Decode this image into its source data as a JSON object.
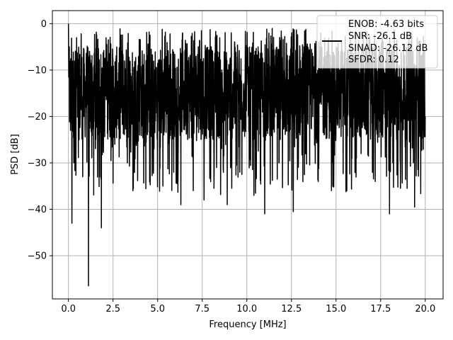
{
  "chart_data": {
    "type": "line",
    "title": "",
    "xlabel": "Frequency [MHz]",
    "ylabel": "PSD [dB]",
    "xlim": [
      -0.9,
      21.0
    ],
    "ylim": [
      -59.3,
      2.8
    ],
    "x_ticks": [
      0.0,
      2.5,
      5.0,
      7.5,
      10.0,
      12.5,
      15.0,
      17.5,
      20.0
    ],
    "x_tick_labels": [
      "0.0",
      "2.5",
      "5.0",
      "7.5",
      "10.0",
      "12.5",
      "15.0",
      "17.5",
      "20.0"
    ],
    "y_ticks": [
      0,
      -10,
      -20,
      -30,
      -40,
      -50
    ],
    "y_tick_labels": [
      "0",
      "−10",
      "−20",
      "−30",
      "−40",
      "−50"
    ],
    "grid": true,
    "legend": {
      "placement": "top-right",
      "entries": [
        {
          "text": "ENOB: -4.63 bits",
          "marker": "none"
        },
        {
          "text": "SNR: -26.1 dB",
          "marker": "line"
        },
        {
          "text": "SINAD: -26.12 dB",
          "marker": "none"
        },
        {
          "text": "SFDR: 0.12",
          "marker": "none"
        }
      ]
    },
    "series": [
      {
        "color": "#000000",
        "x_range": [
          0.0,
          20.0
        ],
        "n_points": 2048,
        "typical_band_db": [
          -25,
          -5
        ],
        "x": [
          0.0,
          0.05,
          0.12,
          0.2,
          0.3,
          0.45,
          0.6,
          0.8,
          1.0,
          1.12,
          1.3,
          1.55,
          1.75,
          1.85,
          2.0,
          2.3,
          2.6,
          3.0,
          3.3,
          3.6,
          4.0,
          4.4,
          4.8,
          5.2,
          5.3,
          5.6,
          5.9,
          6.2,
          6.3,
          6.7,
          7.0,
          7.4,
          7.6,
          8.0,
          8.3,
          8.6,
          8.9,
          9.2,
          9.6,
          10.0,
          10.4,
          10.7,
          11.0,
          11.4,
          11.8,
          12.2,
          12.6,
          13.0,
          13.3,
          13.6,
          14.0,
          14.4,
          14.8,
          15.2,
          15.6,
          16.0,
          16.4,
          16.8,
          17.2,
          17.6,
          18.0,
          18.3,
          18.6,
          19.0,
          19.4,
          19.7,
          20.0
        ],
        "y": [
          0.0,
          -5.0,
          -23.0,
          -43.0,
          -30.0,
          -13.0,
          -25.0,
          -33.0,
          -8.0,
          -56.5,
          -22.0,
          -8.0,
          -33.0,
          -44.0,
          -22.0,
          -10.0,
          -26.0,
          -13.0,
          -30.0,
          -16.0,
          -24.0,
          -8.0,
          -27.0,
          -12.0,
          -35.0,
          -8.0,
          -32.0,
          -20.0,
          -39.0,
          -8.0,
          -36.0,
          -13.0,
          -38.0,
          -5.0,
          -31.0,
          -10.0,
          -39.0,
          -13.0,
          -32.0,
          -8.0,
          -37.0,
          -13.0,
          -41.0,
          -10.0,
          -30.0,
          -12.0,
          -40.5,
          -8.0,
          -28.0,
          -14.0,
          -34.0,
          -7.0,
          -30.0,
          -10.0,
          -36.0,
          -12.0,
          -28.0,
          -8.0,
          -34.0,
          -16.0,
          -41.0,
          -10.0,
          -30.0,
          -12.0,
          -39.5,
          -15.0,
          -20.0
        ]
      }
    ]
  }
}
